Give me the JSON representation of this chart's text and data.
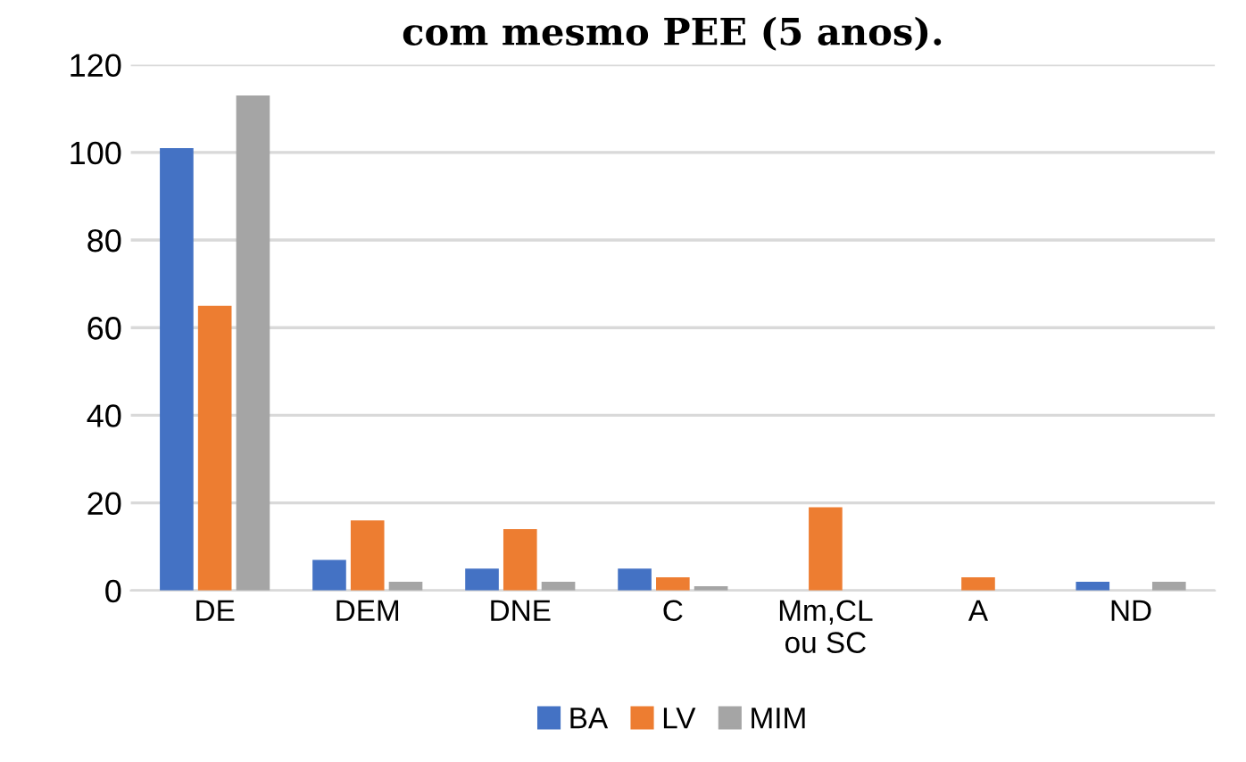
{
  "chart_data": {
    "type": "bar",
    "title": "com mesmo PEE (5 anos).",
    "categories": [
      "DE",
      "DEM",
      "DNE",
      "C",
      "Mm,CL\nou SC",
      "A",
      "ND"
    ],
    "series": [
      {
        "name": "BA",
        "color": "#4472c4",
        "values": [
          101,
          7,
          5,
          5,
          0,
          0,
          2
        ]
      },
      {
        "name": "LV",
        "color": "#ed7d31",
        "values": [
          65,
          16,
          14,
          3,
          19,
          3,
          0
        ]
      },
      {
        "name": "MIM",
        "color": "#a5a5a5",
        "values": [
          113,
          2,
          2,
          1,
          0,
          0,
          2
        ]
      }
    ],
    "ylim": [
      0,
      120
    ],
    "yticks": [
      0,
      20,
      40,
      60,
      80,
      100,
      120
    ],
    "grid": "y",
    "legend": "bottom"
  }
}
